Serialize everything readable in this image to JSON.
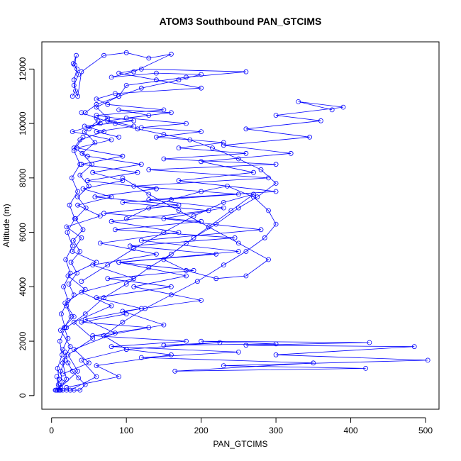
{
  "chart_data": {
    "type": "line",
    "title": "ATOM3 Southbound PAN_GTCIMS",
    "xlabel": "PAN_GTCIMS",
    "ylabel": "Altitude (m)",
    "xlim": [
      -13,
      518
    ],
    "ylim": [
      -500,
      13000
    ],
    "x_ticks": [
      0,
      100,
      200,
      300,
      400,
      500
    ],
    "y_ticks": [
      0,
      2000,
      4000,
      6000,
      8000,
      10000,
      12000
    ],
    "grid": false,
    "legend": "none",
    "line_color": "#0000ff",
    "marker": "open-circle",
    "series": [
      {
        "x": [
          8,
          20,
          15,
          25,
          12,
          30,
          18,
          45,
          22,
          60,
          28,
          40,
          20,
          65,
          35,
          80,
          42,
          95,
          55,
          120,
          48,
          30,
          38,
          70,
          44,
          110,
          60,
          150,
          75,
          60,
          85,
          200,
          140,
          90,
          120,
          260,
          180,
          100,
          90,
          60,
          75,
          50
        ],
        "y": [
          200,
          600,
          1200,
          1800,
          2400,
          2900,
          3400,
          3900,
          4400,
          4900,
          5300,
          5800,
          6200,
          6600,
          7000,
          7300,
          7600,
          7900,
          8200,
          8500,
          8800,
          9100,
          9400,
          9700,
          9900,
          10100,
          10300,
          10500,
          10700,
          10900,
          11100,
          11300,
          11600,
          11850,
          12000,
          11900,
          11700,
          11400,
          11000,
          10600,
          10200,
          9800
        ]
      },
      {
        "x": [
          12,
          35,
          22,
          55,
          30,
          80,
          40,
          110,
          55,
          140,
          65,
          170,
          80,
          210,
          95,
          250,
          110,
          290,
          130,
          300,
          150,
          260,
          170,
          230,
          140,
          200,
          120,
          180,
          100,
          160,
          90,
          130,
          75,
          110,
          60,
          90
        ],
        "y": [
          300,
          900,
          1500,
          2100,
          2700,
          3300,
          3800,
          4300,
          4800,
          5200,
          5600,
          6000,
          6400,
          6800,
          7100,
          7400,
          7700,
          8000,
          8300,
          8500,
          8700,
          8900,
          9100,
          9300,
          9500,
          9700,
          9850,
          10000,
          10200,
          10400,
          10500,
          10300,
          10100,
          9900,
          9700,
          9500
        ]
      },
      {
        "x": [
          25,
          60,
          40,
          100,
          70,
          150,
          95,
          200,
          110,
          180,
          90,
          250,
          120,
          280,
          150,
          230,
          130,
          300,
          170,
          270,
          200,
          320,
          230,
          345,
          260,
          360,
          300,
          390,
          330,
          375
        ],
        "y": [
          200,
          700,
          1300,
          1700,
          2200,
          2600,
          3100,
          3500,
          4000,
          4400,
          4900,
          5300,
          5700,
          6100,
          6500,
          6900,
          7200,
          7500,
          7900,
          8200,
          8600,
          8900,
          9200,
          9500,
          9800,
          10100,
          10300,
          10600,
          10800,
          10500
        ]
      },
      {
        "x": [
          20,
          90,
          60,
          160,
          100,
          225,
          150,
          300,
          200,
          425,
          260,
          485,
          300,
          503,
          230,
          420,
          165,
          350,
          120,
          250,
          80,
          180,
          55,
          130,
          40,
          100
        ],
        "y": [
          300,
          700,
          1100,
          1500,
          1700,
          1950,
          1850,
          1900,
          2000,
          1950,
          1850,
          1800,
          1500,
          1300,
          1100,
          1000,
          900,
          1200,
          1400,
          1600,
          1800,
          2000,
          2200,
          2500,
          2700,
          3000
        ]
      },
      {
        "x": [
          15,
          50,
          30,
          85,
          45,
          120,
          60,
          160,
          75,
          190,
          90,
          220,
          105,
          245,
          85,
          200,
          70,
          170,
          58,
          140,
          48,
          115,
          40,
          95,
          34,
          80,
          28,
          65
        ],
        "y": [
          800,
          1200,
          1700,
          2300,
          2800,
          3200,
          3600,
          4000,
          4300,
          4600,
          4900,
          5200,
          5500,
          5800,
          6100,
          6400,
          6700,
          7000,
          7300,
          7600,
          7900,
          8200,
          8500,
          8800,
          9100,
          9400,
          9700,
          10000
        ]
      },
      {
        "x": [
          28,
          32,
          30,
          34,
          29,
          33,
          31,
          36,
          30,
          35,
          40,
          70,
          100,
          130,
          160,
          110,
          80,
          140,
          200,
          170,
          120,
          90,
          60,
          45
        ],
        "y": [
          11000,
          11200,
          11600,
          12000,
          12200,
          12500,
          12150,
          11800,
          11400,
          11000,
          11900,
          12500,
          12600,
          12400,
          12550,
          11900,
          11700,
          11850,
          11800,
          11600,
          11300,
          11000,
          10700,
          10400
        ]
      },
      {
        "x": [
          10,
          14,
          12,
          18,
          15,
          22,
          17,
          26,
          20,
          30,
          23,
          34,
          26,
          38,
          29,
          42,
          32,
          46,
          35,
          50,
          38,
          54,
          41,
          58,
          44,
          62
        ],
        "y": [
          200,
          500,
          900,
          1300,
          1700,
          2100,
          2500,
          2900,
          3300,
          3700,
          4100,
          4500,
          4900,
          5300,
          5700,
          6100,
          6500,
          6900,
          7300,
          7700,
          8100,
          8500,
          8900,
          9300,
          9700,
          10100
        ]
      },
      {
        "x": [
          6,
          10,
          8,
          14,
          11,
          18,
          13,
          22,
          16,
          25,
          19,
          28,
          21,
          31,
          24,
          35,
          27,
          38,
          30,
          42
        ],
        "y": [
          200,
          600,
          1000,
          1500,
          2000,
          2500,
          3000,
          3500,
          4000,
          4500,
          5000,
          5500,
          6000,
          6500,
          7000,
          7500,
          8000,
          8500,
          9000,
          9500
        ]
      },
      {
        "x": [
          40,
          75,
          110,
          150,
          190,
          230,
          270,
          240,
          210,
          180,
          150,
          180,
          220,
          260,
          290,
          250,
          210,
          170,
          130,
          95
        ],
        "y": [
          4200,
          4800,
          5400,
          6000,
          6600,
          7100,
          7400,
          6800,
          6200,
          5600,
          5000,
          4600,
          4300,
          4400,
          5000,
          5600,
          6200,
          6800,
          7400,
          8000
        ]
      },
      {
        "x": [
          20,
          45,
          70,
          100,
          130,
          160,
          190,
          220,
          250,
          275,
          300,
          280,
          250,
          215,
          185,
          150,
          115,
          85,
          60,
          40
        ],
        "y": [
          2500,
          3000,
          3600,
          4100,
          4700,
          5200,
          5800,
          6300,
          6900,
          7300,
          7800,
          8300,
          8700,
          9100,
          9400,
          9600,
          9800,
          10000,
          10200,
          10400
        ]
      },
      {
        "x": [
          5,
          8,
          12,
          9,
          7,
          11,
          15,
          20,
          25,
          30,
          38,
          45,
          36,
          28,
          22,
          18
        ],
        "y": [
          200,
          200,
          200,
          400,
          700,
          200,
          200,
          200,
          200,
          200,
          200,
          400,
          650,
          900,
          1200,
          1600
        ]
      },
      {
        "x": [
          100,
          130,
          160,
          200,
          235,
          270,
          290,
          300,
          285,
          260,
          230,
          195,
          160,
          125,
          95,
          70
        ],
        "y": [
          6500,
          6900,
          7200,
          7500,
          7700,
          7300,
          6800,
          6300,
          5800,
          5300,
          4800,
          4200,
          3700,
          3200,
          2700,
          2200
        ]
      }
    ]
  }
}
